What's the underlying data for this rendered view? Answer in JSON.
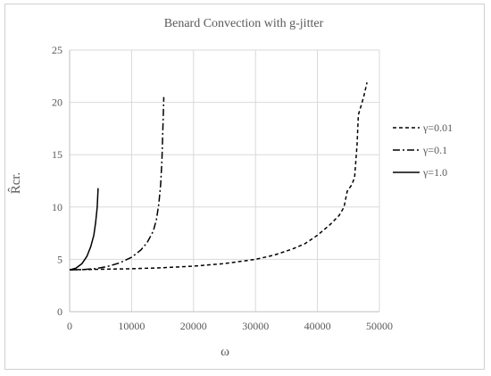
{
  "chart_data": {
    "type": "line",
    "title": "Benard Convection with g-jitter",
    "xlabel": "ω",
    "ylabel": "R̂cr.",
    "xlim": [
      0,
      50000
    ],
    "ylim": [
      0,
      25
    ],
    "x_ticks": [
      "0",
      "10000",
      "20000",
      "30000",
      "40000",
      "50000"
    ],
    "y_ticks": [
      "0",
      "5",
      "10",
      "15",
      "20",
      "25"
    ],
    "grid": "major both",
    "legend_position": "right",
    "series": [
      {
        "name": "γ=0.01",
        "dash": "dashed",
        "color": "#000000",
        "points": [
          [
            0,
            4.0
          ],
          [
            5000,
            4.05
          ],
          [
            10000,
            4.1
          ],
          [
            15000,
            4.2
          ],
          [
            20000,
            4.35
          ],
          [
            25000,
            4.6
          ],
          [
            30000,
            5.0
          ],
          [
            33000,
            5.4
          ],
          [
            36000,
            6.0
          ],
          [
            38000,
            6.5
          ],
          [
            40000,
            7.3
          ],
          [
            42000,
            8.3
          ],
          [
            43500,
            9.2
          ],
          [
            44300,
            10.0
          ],
          [
            44800,
            11.5
          ],
          [
            45500,
            12.1
          ],
          [
            46000,
            12.8
          ],
          [
            46400,
            16.0
          ],
          [
            46600,
            18.8
          ],
          [
            47000,
            19.6
          ],
          [
            47500,
            20.6
          ],
          [
            48000,
            21.9
          ]
        ]
      },
      {
        "name": "γ=0.1",
        "dash": "dash-dot",
        "color": "#000000",
        "points": [
          [
            0,
            4.0
          ],
          [
            2000,
            4.02
          ],
          [
            4000,
            4.1
          ],
          [
            6000,
            4.3
          ],
          [
            8000,
            4.65
          ],
          [
            10000,
            5.2
          ],
          [
            11500,
            5.9
          ],
          [
            12500,
            6.6
          ],
          [
            13500,
            7.7
          ],
          [
            14000,
            8.8
          ],
          [
            14400,
            10.3
          ],
          [
            14700,
            12.2
          ],
          [
            14900,
            14.5
          ],
          [
            15000,
            16.5
          ],
          [
            15100,
            18.5
          ],
          [
            15200,
            20.5
          ]
        ]
      },
      {
        "name": "γ=1.0",
        "dash": "solid",
        "color": "#000000",
        "points": [
          [
            0,
            4.0
          ],
          [
            1000,
            4.15
          ],
          [
            2000,
            4.6
          ],
          [
            2800,
            5.3
          ],
          [
            3400,
            6.2
          ],
          [
            3900,
            7.3
          ],
          [
            4200,
            8.5
          ],
          [
            4450,
            10.0
          ],
          [
            4600,
            11.8
          ]
        ]
      }
    ]
  }
}
